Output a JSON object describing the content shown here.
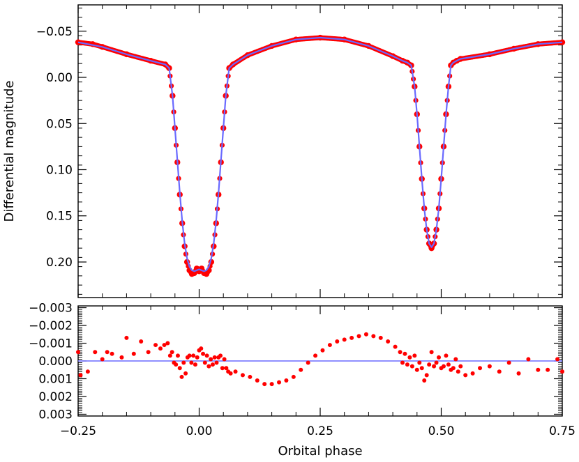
{
  "chart_data": [
    {
      "type": "scatter",
      "ylabel": "Differential magnitude",
      "xlim": [
        -0.25,
        0.75
      ],
      "ylim": [
        0.24,
        -0.08
      ],
      "y_inverted": true,
      "xticks": [
        -0.25,
        0.0,
        0.25,
        0.5,
        0.75
      ],
      "yticks": [
        -0.05,
        0.0,
        0.05,
        0.1,
        0.15,
        0.2
      ],
      "ytick_labels": [
        "−0.05",
        "0.00",
        "0.05",
        "0.10",
        "0.15",
        "0.20"
      ],
      "grid": false,
      "colors": {
        "observed": "#ff0000",
        "model": "#6a6aff"
      },
      "series": [
        {
          "role": "observed",
          "marker": "filled-circle",
          "x": [
            -0.25,
            -0.22,
            -0.2,
            -0.15,
            -0.1,
            -0.07,
            -0.062,
            -0.055,
            -0.05,
            -0.045,
            -0.04,
            -0.035,
            -0.03,
            -0.025,
            -0.02,
            -0.015,
            -0.01,
            -0.005,
            0.0,
            0.005,
            0.01,
            0.015,
            0.02,
            0.025,
            0.03,
            0.035,
            0.04,
            0.045,
            0.05,
            0.055,
            0.062,
            0.07,
            0.1,
            0.15,
            0.2,
            0.25,
            0.3,
            0.35,
            0.4,
            0.42,
            0.43,
            0.438,
            0.445,
            0.45,
            0.455,
            0.46,
            0.465,
            0.47,
            0.475,
            0.48,
            0.485,
            0.49,
            0.495,
            0.5,
            0.505,
            0.51,
            0.515,
            0.52,
            0.525,
            0.532,
            0.54,
            0.6,
            0.65,
            0.7,
            0.75
          ],
          "y": [
            -0.038,
            -0.036,
            -0.033,
            -0.025,
            -0.018,
            -0.014,
            -0.01,
            0.02,
            0.055,
            0.092,
            0.127,
            0.158,
            0.183,
            0.2,
            0.209,
            0.213,
            0.212,
            0.207,
            0.21,
            0.207,
            0.212,
            0.213,
            0.209,
            0.2,
            0.183,
            0.158,
            0.127,
            0.092,
            0.055,
            0.02,
            -0.01,
            -0.014,
            -0.024,
            -0.034,
            -0.041,
            -0.043,
            -0.041,
            -0.034,
            -0.023,
            -0.018,
            -0.016,
            -0.013,
            0.01,
            0.04,
            0.075,
            0.11,
            0.142,
            0.165,
            0.18,
            0.185,
            0.18,
            0.165,
            0.142,
            0.11,
            0.075,
            0.04,
            0.01,
            -0.013,
            -0.016,
            -0.018,
            -0.02,
            -0.025,
            -0.031,
            -0.036,
            -0.038
          ]
        },
        {
          "role": "model",
          "x": [
            -0.25,
            -0.2,
            -0.15,
            -0.1,
            -0.07,
            -0.062,
            -0.055,
            -0.05,
            -0.045,
            -0.04,
            -0.035,
            -0.03,
            -0.025,
            -0.02,
            -0.015,
            -0.01,
            -0.005,
            0.0,
            0.005,
            0.01,
            0.015,
            0.02,
            0.025,
            0.03,
            0.035,
            0.04,
            0.045,
            0.05,
            0.055,
            0.062,
            0.07,
            0.1,
            0.15,
            0.2,
            0.25,
            0.3,
            0.35,
            0.4,
            0.42,
            0.43,
            0.438,
            0.445,
            0.45,
            0.455,
            0.46,
            0.465,
            0.47,
            0.475,
            0.48,
            0.485,
            0.49,
            0.495,
            0.5,
            0.505,
            0.51,
            0.515,
            0.52,
            0.525,
            0.532,
            0.54,
            0.6,
            0.65,
            0.7,
            0.75
          ],
          "y": [
            -0.038,
            -0.033,
            -0.025,
            -0.018,
            -0.014,
            -0.01,
            0.02,
            0.055,
            0.09,
            0.125,
            0.156,
            0.18,
            0.196,
            0.205,
            0.209,
            0.21,
            0.209,
            0.208,
            0.209,
            0.21,
            0.209,
            0.205,
            0.196,
            0.18,
            0.156,
            0.125,
            0.09,
            0.055,
            0.02,
            -0.01,
            -0.014,
            -0.024,
            -0.034,
            -0.041,
            -0.043,
            -0.041,
            -0.034,
            -0.023,
            -0.018,
            -0.016,
            -0.013,
            0.01,
            0.04,
            0.075,
            0.11,
            0.142,
            0.165,
            0.18,
            0.184,
            0.18,
            0.165,
            0.142,
            0.11,
            0.075,
            0.04,
            0.01,
            -0.013,
            -0.016,
            -0.018,
            -0.02,
            -0.025,
            -0.031,
            -0.036,
            -0.038
          ]
        }
      ]
    },
    {
      "type": "scatter",
      "xlabel": "Orbital phase",
      "xlim": [
        -0.25,
        0.75
      ],
      "ylim": [
        0.0031,
        -0.0031
      ],
      "y_inverted": true,
      "xticks": [
        -0.25,
        0.0,
        0.25,
        0.5,
        0.75
      ],
      "xtick_labels": [
        "−0.25",
        "0.00",
        "0.25",
        "0.50",
        "0.75"
      ],
      "yticks": [
        -0.003,
        -0.002,
        -0.001,
        0.0,
        0.001,
        0.002,
        0.003
      ],
      "ytick_labels": [
        "−0.003",
        "−0.002",
        "−0.001",
        "0.000",
        "0.001",
        "0.002",
        "0.003"
      ],
      "grid": false,
      "zero_line": 0.0,
      "colors": {
        "residuals": "#ff0000",
        "zero_line": "#6a6aff"
      },
      "series": [
        {
          "role": "residuals",
          "marker": "filled-circle",
          "x": [
            -0.25,
            -0.245,
            -0.23,
            -0.215,
            -0.2,
            -0.19,
            -0.18,
            -0.16,
            -0.15,
            -0.135,
            -0.12,
            -0.105,
            -0.09,
            -0.08,
            -0.072,
            -0.065,
            -0.06,
            -0.056,
            -0.052,
            -0.048,
            -0.044,
            -0.04,
            -0.036,
            -0.032,
            -0.028,
            -0.024,
            -0.02,
            -0.016,
            -0.012,
            -0.008,
            -0.004,
            0.0,
            0.004,
            0.008,
            0.012,
            0.016,
            0.02,
            0.024,
            0.028,
            0.032,
            0.036,
            0.04,
            0.044,
            0.048,
            0.052,
            0.056,
            0.06,
            0.065,
            0.075,
            0.09,
            0.105,
            0.12,
            0.135,
            0.15,
            0.165,
            0.18,
            0.195,
            0.21,
            0.225,
            0.24,
            0.255,
            0.27,
            0.285,
            0.3,
            0.315,
            0.33,
            0.345,
            0.36,
            0.375,
            0.39,
            0.405,
            0.415,
            0.42,
            0.425,
            0.43,
            0.435,
            0.44,
            0.445,
            0.45,
            0.455,
            0.46,
            0.465,
            0.47,
            0.475,
            0.48,
            0.485,
            0.49,
            0.495,
            0.5,
            0.505,
            0.51,
            0.515,
            0.52,
            0.525,
            0.53,
            0.535,
            0.54,
            0.55,
            0.565,
            0.58,
            0.6,
            0.62,
            0.64,
            0.66,
            0.68,
            0.7,
            0.72,
            0.74,
            0.75
          ],
          "y": [
            -0.0005,
            0.0008,
            0.0006,
            -0.0005,
            -0.0001,
            -0.0005,
            -0.0004,
            -0.0002,
            -0.0013,
            -0.0004,
            -0.0011,
            -0.0005,
            -0.0009,
            -0.0007,
            -0.0009,
            -0.001,
            -0.0003,
            -0.0005,
            0.0001,
            0.0002,
            -0.0003,
            0.0004,
            0.0009,
            0.0001,
            0.0007,
            -0.0002,
            -0.0003,
            0.0001,
            -0.0003,
            0.0002,
            -0.0002,
            -0.0006,
            -0.0007,
            -0.0004,
            0.0001,
            -0.0003,
            0.0003,
            -0.0001,
            0.0002,
            -0.0002,
            0.0001,
            -0.0002,
            -0.0003,
            0.0004,
            -0.0001,
            0.0004,
            0.0006,
            0.0007,
            0.0006,
            0.0008,
            0.0009,
            0.0011,
            0.0013,
            0.0013,
            0.0012,
            0.0011,
            0.0009,
            0.0005,
            0.0001,
            -0.0003,
            -0.0006,
            -0.0009,
            -0.0011,
            -0.0012,
            -0.0013,
            -0.0014,
            -0.0015,
            -0.0014,
            -0.0013,
            -0.0011,
            -0.0008,
            -0.0005,
            0.0001,
            -0.0004,
            0.0002,
            -0.0002,
            0.0003,
            -0.0003,
            0.0005,
            0.0001,
            0.0004,
            0.0011,
            0.0008,
            0.0002,
            -0.0005,
            0.0003,
            0.0001,
            -0.0002,
            0.0004,
            0.0003,
            -0.0003,
            0.0002,
            0.0005,
            0.0004,
            -0.0001,
            0.0006,
            0.0003,
            0.0008,
            0.0007,
            0.0004,
            0.0003,
            0.0006,
            0.0001,
            0.0007,
            -0.0001,
            0.0005,
            0.0005,
            -0.0001,
            0.0006
          ]
        }
      ]
    }
  ]
}
